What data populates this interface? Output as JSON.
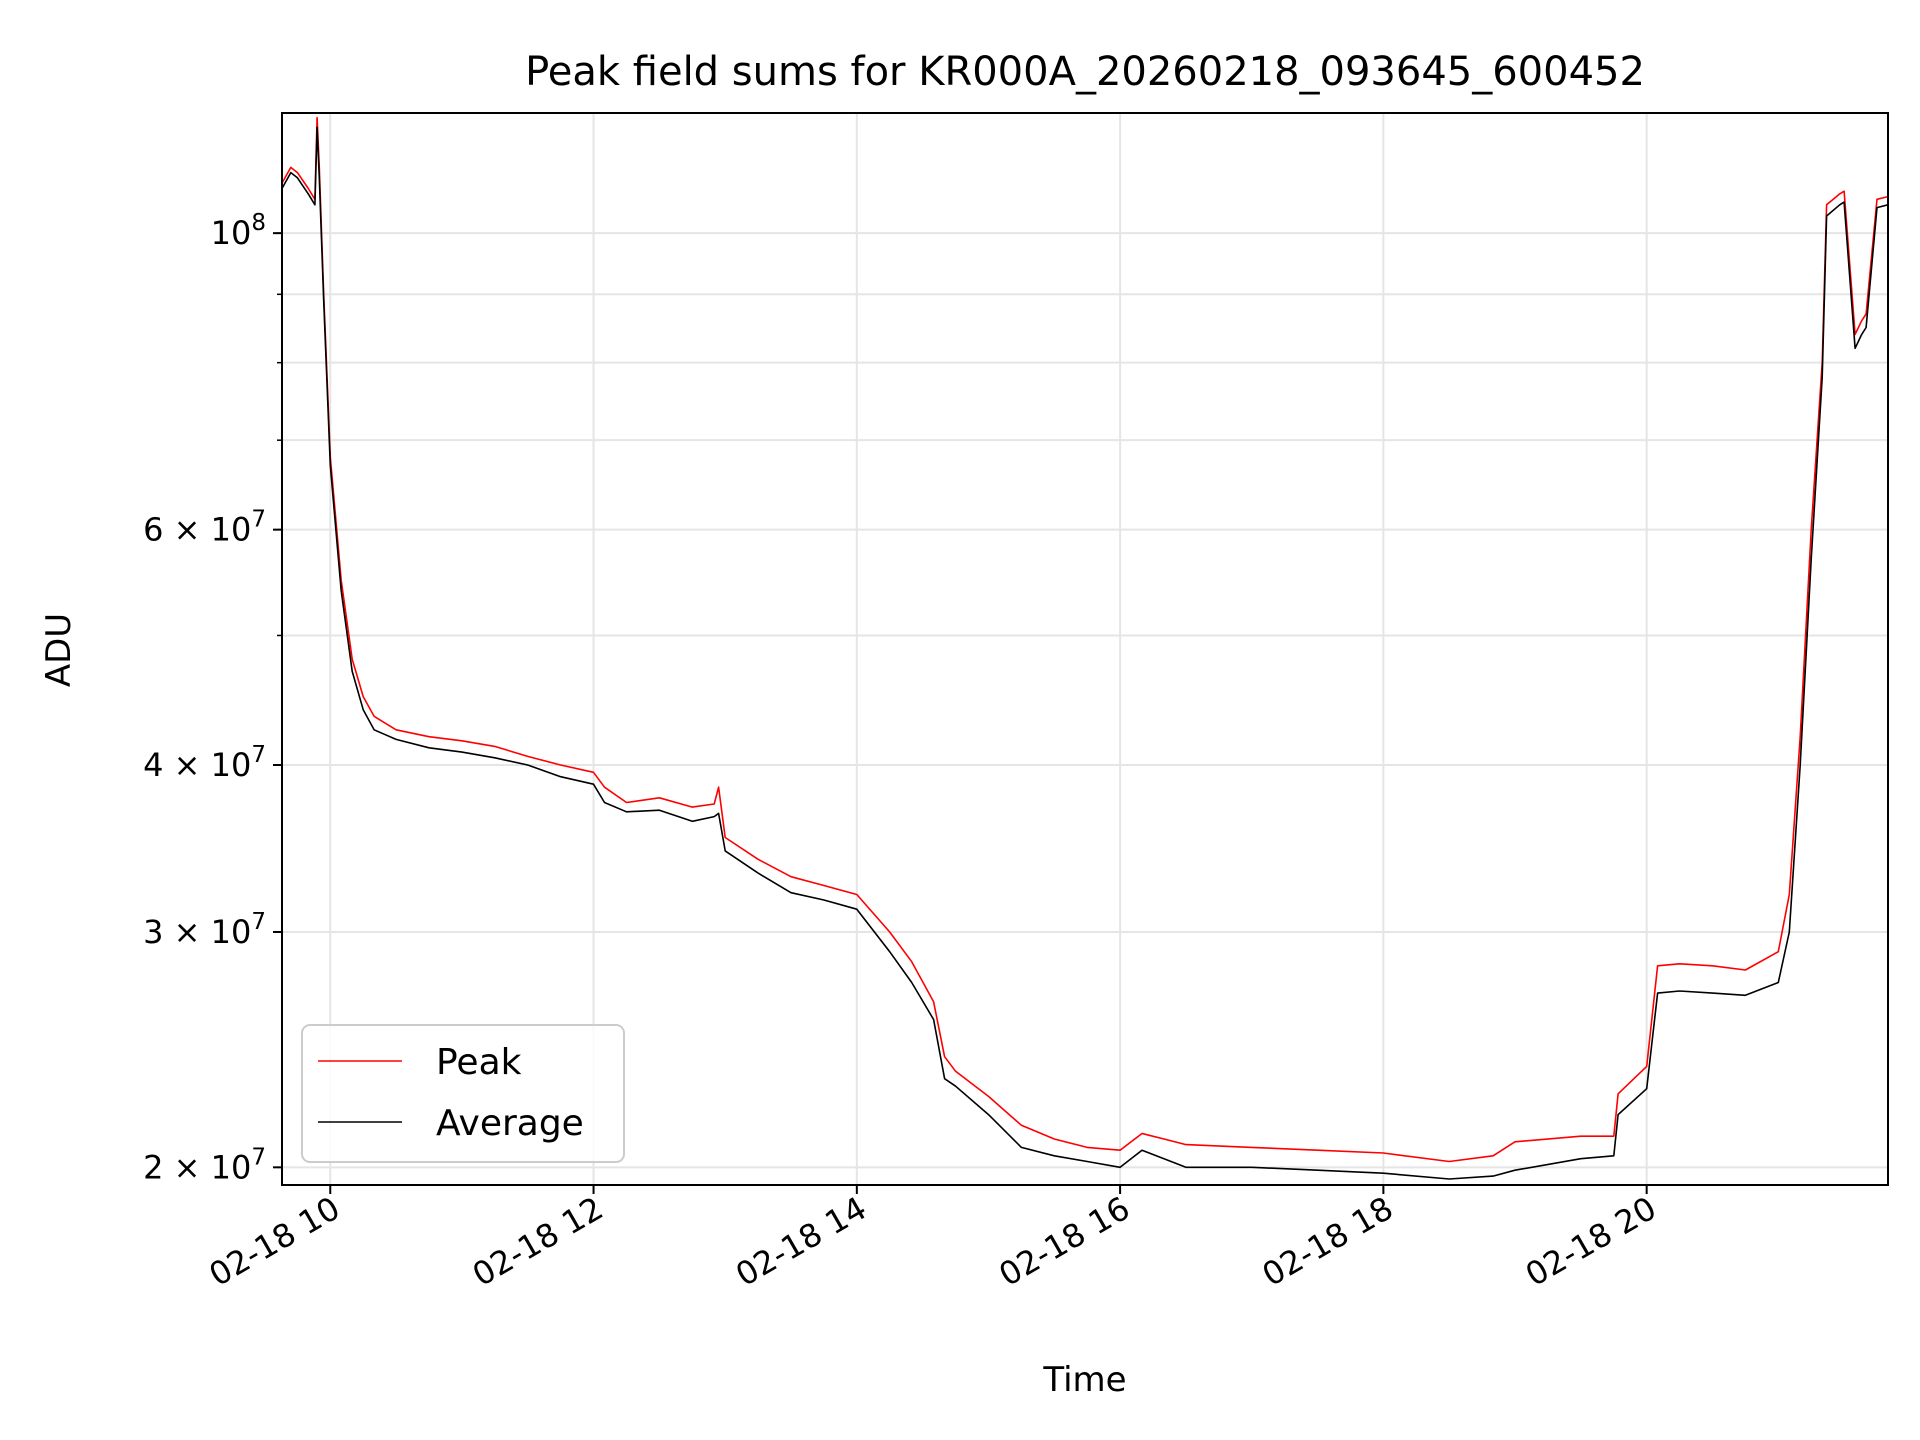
{
  "chart_data": {
    "type": "line",
    "title": "Peak field sums for KR000A_20260218_093645_600452",
    "xlabel": "Time",
    "ylabel": "ADU",
    "y_scale": "log",
    "ylim": [
      19400000,
      123000000
    ],
    "xlim": [
      "02-18 09:38",
      "02-18 21:50"
    ],
    "grid": true,
    "legend_position": "lower-left",
    "x_ticks": [
      "02-18 10",
      "02-18 12",
      "02-18 14",
      "02-18 16",
      "02-18 18",
      "02-18 20"
    ],
    "y_ticks": [
      {
        "label": "2 × 10^7",
        "value": 20000000,
        "base": "2",
        "exp": "7"
      },
      {
        "label": "3 × 10^7",
        "value": 30000000,
        "base": "3",
        "exp": "7"
      },
      {
        "label": "4 × 10^7",
        "value": 40000000,
        "base": "4",
        "exp": "7"
      },
      {
        "label": "6 × 10^7",
        "value": 60000000,
        "base": "6",
        "exp": "7"
      },
      {
        "label": "10^8",
        "value": 100000000,
        "base": "",
        "exp": "8"
      }
    ],
    "colors": {
      "peak": "#ff0000",
      "average": "#000000",
      "grid": "#e5e5e5"
    },
    "series": [
      {
        "name": "Peak",
        "color": "#ff0000",
        "x": [
          "02-18 09:38",
          "02-18 09:42",
          "02-18 09:45",
          "02-18 09:50",
          "02-18 09:53",
          "02-18 09:54",
          "02-18 09:55",
          "02-18 09:57",
          "02-18 10:00",
          "02-18 10:05",
          "02-18 10:10",
          "02-18 10:15",
          "02-18 10:20",
          "02-18 10:30",
          "02-18 10:45",
          "02-18 11:00",
          "02-18 11:15",
          "02-18 11:30",
          "02-18 11:45",
          "02-18 12:00",
          "02-18 12:05",
          "02-18 12:15",
          "02-18 12:30",
          "02-18 12:45",
          "02-18 12:55",
          "02-18 12:57",
          "02-18 13:00",
          "02-18 13:15",
          "02-18 13:30",
          "02-18 13:45",
          "02-18 14:00",
          "02-18 14:15",
          "02-18 14:25",
          "02-18 14:35",
          "02-18 14:40",
          "02-18 14:45",
          "02-18 15:00",
          "02-18 15:15",
          "02-18 15:30",
          "02-18 15:45",
          "02-18 16:00",
          "02-18 16:10",
          "02-18 16:20",
          "02-18 16:30",
          "02-18 17:00",
          "02-18 17:30",
          "02-18 18:00",
          "02-18 18:30",
          "02-18 18:50",
          "02-18 19:00",
          "02-18 19:30",
          "02-18 19:45",
          "02-18 19:47",
          "02-18 20:00",
          "02-18 20:05",
          "02-18 20:15",
          "02-18 20:30",
          "02-18 20:45",
          "02-18 21:00",
          "02-18 21:05",
          "02-18 21:10",
          "02-18 21:15",
          "02-18 21:20",
          "02-18 21:22",
          "02-18 21:28",
          "02-18 21:30",
          "02-18 21:35",
          "02-18 21:38",
          "02-18 21:40",
          "02-18 21:45",
          "02-18 21:50"
        ],
        "values": [
          109000000,
          112000000,
          111000000,
          108000000,
          106000000,
          122000000,
          112000000,
          90000000,
          68000000,
          55000000,
          48000000,
          45000000,
          43500000,
          42500000,
          42000000,
          41700000,
          41300000,
          40600000,
          40000000,
          39500000,
          38500000,
          37500000,
          37800000,
          37200000,
          37400000,
          38500000,
          35300000,
          34000000,
          33000000,
          32500000,
          32000000,
          30000000,
          28500000,
          26600000,
          24200000,
          23600000,
          22600000,
          21500000,
          21000000,
          20700000,
          20600000,
          21200000,
          21000000,
          20800000,
          20700000,
          20600000,
          20500000,
          20200000,
          20400000,
          20900000,
          21100000,
          21100000,
          22700000,
          23800000,
          28300000,
          28400000,
          28300000,
          28100000,
          29000000,
          32000000,
          42000000,
          60000000,
          80000000,
          105000000,
          107000000,
          107500000,
          84000000,
          86000000,
          87000000,
          106000000,
          106500000
        ]
      },
      {
        "name": "Average",
        "color": "#000000",
        "x": [
          "02-18 09:38",
          "02-18 09:42",
          "02-18 09:45",
          "02-18 09:50",
          "02-18 09:53",
          "02-18 09:54",
          "02-18 09:55",
          "02-18 09:57",
          "02-18 10:00",
          "02-18 10:05",
          "02-18 10:10",
          "02-18 10:15",
          "02-18 10:20",
          "02-18 10:30",
          "02-18 10:45",
          "02-18 11:00",
          "02-18 11:15",
          "02-18 11:30",
          "02-18 11:45",
          "02-18 12:00",
          "02-18 12:05",
          "02-18 12:15",
          "02-18 12:30",
          "02-18 12:45",
          "02-18 12:55",
          "02-18 12:57",
          "02-18 13:00",
          "02-18 13:15",
          "02-18 13:30",
          "02-18 13:45",
          "02-18 14:00",
          "02-18 14:15",
          "02-18 14:25",
          "02-18 14:35",
          "02-18 14:40",
          "02-18 14:45",
          "02-18 15:00",
          "02-18 15:15",
          "02-18 15:30",
          "02-18 15:45",
          "02-18 16:00",
          "02-18 16:10",
          "02-18 16:20",
          "02-18 16:30",
          "02-18 17:00",
          "02-18 17:30",
          "02-18 18:00",
          "02-18 18:30",
          "02-18 18:50",
          "02-18 19:00",
          "02-18 19:30",
          "02-18 19:45",
          "02-18 19:47",
          "02-18 20:00",
          "02-18 20:05",
          "02-18 20:15",
          "02-18 20:30",
          "02-18 20:45",
          "02-18 21:00",
          "02-18 21:05",
          "02-18 21:10",
          "02-18 21:15",
          "02-18 21:20",
          "02-18 21:22",
          "02-18 21:28",
          "02-18 21:30",
          "02-18 21:35",
          "02-18 21:38",
          "02-18 21:40",
          "02-18 21:45",
          "02-18 21:50"
        ],
        "values": [
          108000000,
          111000000,
          110000000,
          107000000,
          105000000,
          120000000,
          110000000,
          89000000,
          67000000,
          54000000,
          47000000,
          44000000,
          42500000,
          41800000,
          41200000,
          40900000,
          40500000,
          40000000,
          39200000,
          38700000,
          37500000,
          36900000,
          37000000,
          36300000,
          36600000,
          36800000,
          34500000,
          33200000,
          32100000,
          31700000,
          31200000,
          29000000,
          27500000,
          25800000,
          23300000,
          23000000,
          21900000,
          20700000,
          20400000,
          20200000,
          20000000,
          20600000,
          20300000,
          20000000,
          20000000,
          19900000,
          19800000,
          19600000,
          19700000,
          19900000,
          20300000,
          20400000,
          21900000,
          22900000,
          27000000,
          27100000,
          27000000,
          26900000,
          27500000,
          30000000,
          40000000,
          57000000,
          78000000,
          103000000,
          105000000,
          105500000,
          82000000,
          84000000,
          85000000,
          104500000,
          105000000
        ]
      }
    ]
  }
}
